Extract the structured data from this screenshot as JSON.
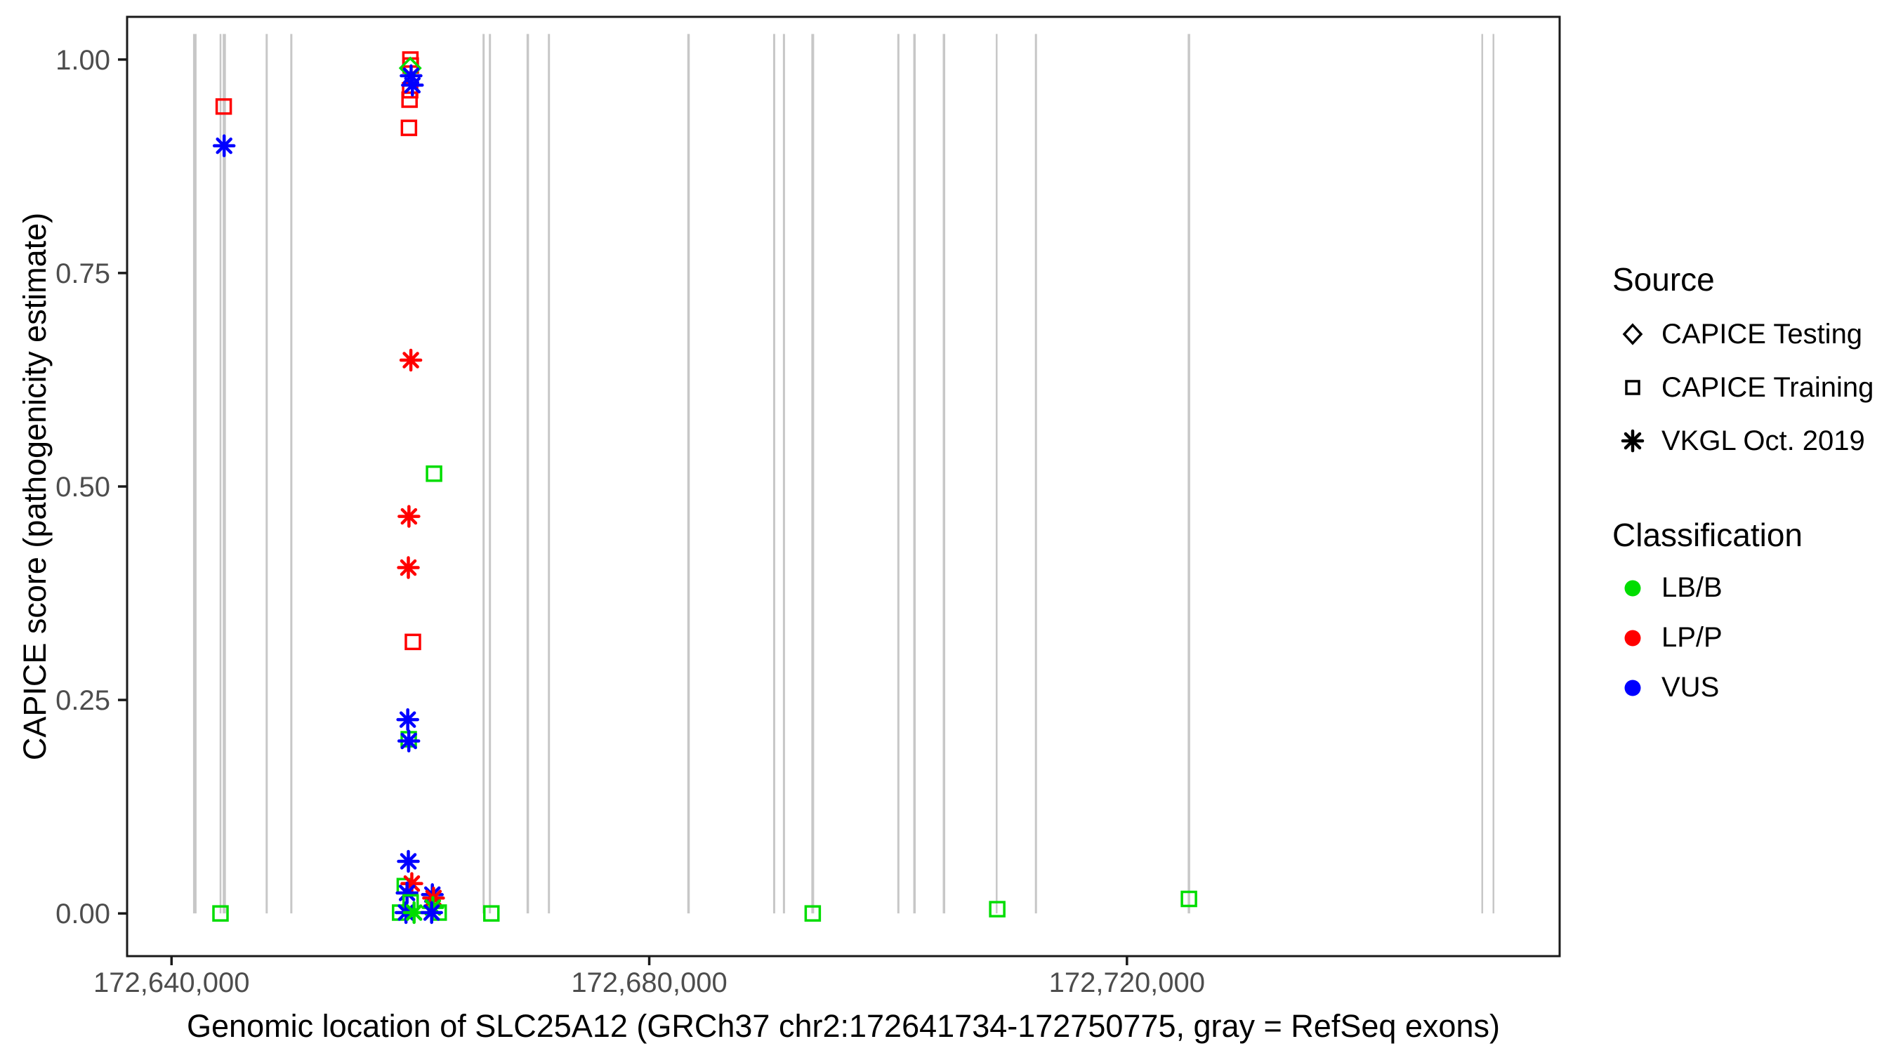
{
  "figure": {
    "xlabel": "Genomic location of SLC25A12 (GRCh37 chr2:172641734-172750775, gray = RefSeq exons)",
    "ylabel": "CAPICE score (pathogenicity estimate)"
  },
  "legend": {
    "source": {
      "title": "Source",
      "items": [
        {
          "label": "CAPICE Testing",
          "shape": "diamond"
        },
        {
          "label": "CAPICE Training",
          "shape": "square"
        },
        {
          "label": "VKGL Oct. 2019",
          "shape": "asterisk"
        }
      ]
    },
    "classification": {
      "title": "Classification",
      "items": [
        {
          "label": "LB/B",
          "color": "#00DD00"
        },
        {
          "label": "LP/P",
          "color": "#FF0000"
        },
        {
          "label": "VUS",
          "color": "#0000FF"
        }
      ]
    }
  },
  "chart_data": {
    "type": "scatter",
    "title": "",
    "xlabel": "Genomic location of SLC25A12 (GRCh37 chr2:172641734-172750775, gray = RefSeq exons)",
    "ylabel": "CAPICE score (pathogenicity estimate)",
    "x_domain": [
      172636280,
      172756230
    ],
    "y_domain": [
      -0.05,
      1.05
    ],
    "grid": false,
    "legend_position": "right",
    "x_ticks": [
      {
        "value": 172640000,
        "label": "172,640,000"
      },
      {
        "value": 172680000,
        "label": "172,680,000"
      },
      {
        "value": 172720000,
        "label": "172,720,000"
      }
    ],
    "y_ticks": [
      {
        "value": 0.0,
        "label": "0.00"
      },
      {
        "value": 0.25,
        "label": "0.25"
      },
      {
        "value": 0.5,
        "label": "0.50"
      },
      {
        "value": 0.75,
        "label": "0.75"
      },
      {
        "value": 1.0,
        "label": "1.00"
      }
    ],
    "exon_color": "#C7C7C7",
    "exon_y_range": [
      0.0,
      1.03
    ],
    "exons": [
      {
        "pos": 172641950,
        "w": 5
      },
      {
        "pos": 172644100,
        "w": 2.5
      },
      {
        "pos": 172644420,
        "w": 4.5
      },
      {
        "pos": 172647970,
        "w": 3
      },
      {
        "pos": 172650030,
        "w": 3
      },
      {
        "pos": 172666130,
        "w": 3
      },
      {
        "pos": 172666660,
        "w": 3
      },
      {
        "pos": 172669830,
        "w": 3.5
      },
      {
        "pos": 172671600,
        "w": 3
      },
      {
        "pos": 172683290,
        "w": 3.5
      },
      {
        "pos": 172690460,
        "w": 3
      },
      {
        "pos": 172691280,
        "w": 3
      },
      {
        "pos": 172693690,
        "w": 4
      },
      {
        "pos": 172700860,
        "w": 3
      },
      {
        "pos": 172702210,
        "w": 3.5
      },
      {
        "pos": 172704680,
        "w": 3.5
      },
      {
        "pos": 172709090,
        "w": 2.5
      },
      {
        "pos": 172712380,
        "w": 3
      },
      {
        "pos": 172725190,
        "w": 3.5
      },
      {
        "pos": 172749750,
        "w": 2.5
      },
      {
        "pos": 172750690,
        "w": 2.5
      }
    ],
    "colors": {
      "LB/B": "#00DD00",
      "LP/P": "#FF0000",
      "VUS": "#0000FF"
    },
    "shapes": {
      "square": "CAPICE Training",
      "diamond": "CAPICE Testing",
      "asterisk": "VKGL Oct. 2019"
    },
    "points": [
      {
        "pos": 172644370,
        "score": 0.945,
        "shape": "square",
        "class": "LP/P"
      },
      {
        "pos": 172644405,
        "score": 0.899,
        "shape": "asterisk",
        "class": "VUS"
      },
      {
        "pos": 172660000,
        "score": 1.0,
        "shape": "square",
        "class": "LP/P"
      },
      {
        "pos": 172660030,
        "score": 0.993,
        "shape": "square",
        "class": "LP/P"
      },
      {
        "pos": 172659980,
        "score": 0.964,
        "shape": "square",
        "class": "LP/P"
      },
      {
        "pos": 172659930,
        "score": 0.953,
        "shape": "square",
        "class": "LP/P"
      },
      {
        "pos": 172659880,
        "score": 0.92,
        "shape": "square",
        "class": "LP/P"
      },
      {
        "pos": 172659990,
        "score": 0.99,
        "shape": "diamond",
        "class": "LB/B"
      },
      {
        "pos": 172660060,
        "score": 0.981,
        "shape": "asterisk",
        "class": "VUS"
      },
      {
        "pos": 172660170,
        "score": 0.97,
        "shape": "asterisk",
        "class": "VUS"
      },
      {
        "pos": 172660040,
        "score": 0.648,
        "shape": "asterisk",
        "class": "LP/P"
      },
      {
        "pos": 172661980,
        "score": 0.515,
        "shape": "square",
        "class": "LB/B"
      },
      {
        "pos": 172659880,
        "score": 0.465,
        "shape": "asterisk",
        "class": "LP/P"
      },
      {
        "pos": 172659830,
        "score": 0.405,
        "shape": "asterisk",
        "class": "LP/P"
      },
      {
        "pos": 172660210,
        "score": 0.318,
        "shape": "square",
        "class": "LP/P"
      },
      {
        "pos": 172659780,
        "score": 0.227,
        "shape": "asterisk",
        "class": "VUS"
      },
      {
        "pos": 172659860,
        "score": 0.204,
        "shape": "square",
        "class": "LB/B"
      },
      {
        "pos": 172659870,
        "score": 0.202,
        "shape": "asterisk",
        "class": "VUS"
      },
      {
        "pos": 172659830,
        "score": 0.061,
        "shape": "asterisk",
        "class": "VUS"
      },
      {
        "pos": 172659530,
        "score": 0.032,
        "shape": "square",
        "class": "LB/B"
      },
      {
        "pos": 172660120,
        "score": 0.035,
        "shape": "asterisk",
        "class": "LP/P"
      },
      {
        "pos": 172659720,
        "score": 0.024,
        "shape": "asterisk",
        "class": "VUS"
      },
      {
        "pos": 172661840,
        "score": 0.022,
        "shape": "asterisk",
        "class": "VUS"
      },
      {
        "pos": 172661940,
        "score": 0.018,
        "shape": "asterisk",
        "class": "LP/P"
      },
      {
        "pos": 172660020,
        "score": 0.013,
        "shape": "square",
        "class": "LB/B"
      },
      {
        "pos": 172661880,
        "score": 0.007,
        "shape": "asterisk",
        "class": "LB/B"
      },
      {
        "pos": 172659140,
        "score": 0.001,
        "shape": "square",
        "class": "LB/B"
      },
      {
        "pos": 172662370,
        "score": 0.001,
        "shape": "square",
        "class": "LB/B"
      },
      {
        "pos": 172659630,
        "score": 0.001,
        "shape": "asterisk",
        "class": "VUS"
      },
      {
        "pos": 172660310,
        "score": 0.001,
        "shape": "asterisk",
        "class": "LB/B"
      },
      {
        "pos": 172661780,
        "score": 0.001,
        "shape": "asterisk",
        "class": "VUS"
      },
      {
        "pos": 172666780,
        "score": 0.0,
        "shape": "square",
        "class": "LB/B"
      },
      {
        "pos": 172644100,
        "score": 0.0,
        "shape": "square",
        "class": "LB/B"
      },
      {
        "pos": 172693690,
        "score": 0.0,
        "shape": "square",
        "class": "LB/B"
      },
      {
        "pos": 172709140,
        "score": 0.005,
        "shape": "square",
        "class": "LB/B"
      },
      {
        "pos": 172725190,
        "score": 0.017,
        "shape": "square",
        "class": "LB/B"
      }
    ]
  }
}
